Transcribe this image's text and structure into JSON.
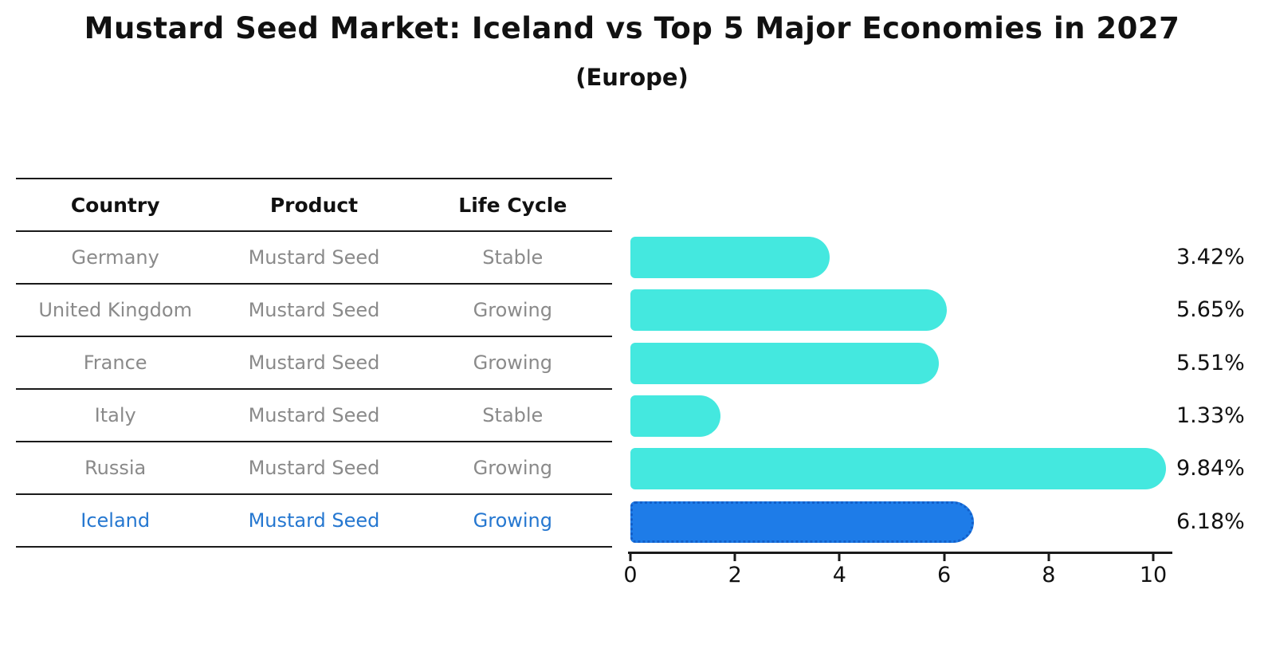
{
  "title": "Mustard Seed Market: Iceland vs Top 5 Major Economies in 2027",
  "subtitle": "(Europe)",
  "table": {
    "columns": [
      "Country",
      "Product",
      "Life Cycle"
    ],
    "rows": [
      {
        "country": "Germany",
        "product": "Mustard Seed",
        "life_cycle": "Stable",
        "highlight": false
      },
      {
        "country": "United Kingdom",
        "product": "Mustard Seed",
        "life_cycle": "Growing",
        "highlight": false
      },
      {
        "country": "France",
        "product": "Mustard Seed",
        "life_cycle": "Growing",
        "highlight": false
      },
      {
        "country": "Italy",
        "product": "Mustard Seed",
        "life_cycle": "Stable",
        "highlight": false
      },
      {
        "country": "Russia",
        "product": "Mustard Seed",
        "life_cycle": "Growing",
        "highlight": false
      },
      {
        "country": "Iceland",
        "product": "Mustard Seed",
        "life_cycle": "Growing",
        "highlight": true
      }
    ]
  },
  "chart_data": {
    "type": "bar",
    "orientation": "horizontal",
    "categories": [
      "Germany",
      "United Kingdom",
      "France",
      "Italy",
      "Russia",
      "Iceland"
    ],
    "values": [
      3.42,
      5.65,
      5.51,
      1.33,
      9.84,
      6.18
    ],
    "value_labels": [
      "3.42%",
      "5.65%",
      "5.51%",
      "1.33%",
      "9.84%",
      "6.18%"
    ],
    "xlabel": "",
    "ylabel": "",
    "xlim": [
      0,
      10.4
    ],
    "xticks": [
      0,
      2,
      4,
      6,
      8,
      10
    ],
    "grid": false,
    "legend_position": "none",
    "bar_color": "#44E8DF",
    "highlight_index": 5,
    "highlight_color": "#1E7CE8",
    "highlight_border_color": "#135FC9"
  },
  "colors": {
    "row_text": "#8a8a8a",
    "highlight_text": "#2577d0",
    "header_text": "#111111",
    "line": "#1a1a1a"
  }
}
